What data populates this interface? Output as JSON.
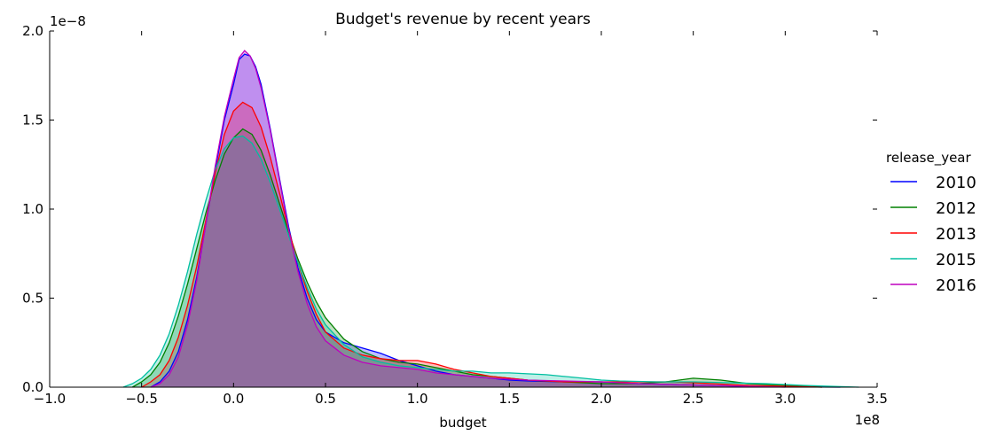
{
  "chart_data": {
    "type": "area",
    "title": "Budget's revenue by recent years",
    "xlabel": "budget",
    "ylabel": "",
    "x_offset_label": "1e8",
    "y_offset_label": "1e−8",
    "xlim": [
      -1.0,
      3.5
    ],
    "ylim": [
      0.0,
      2.0
    ],
    "xticks": [
      -1.0,
      -0.5,
      0.0,
      0.5,
      1.0,
      1.5,
      2.0,
      2.5,
      3.0,
      3.5
    ],
    "xtick_labels": [
      "−1.0",
      "−0.5",
      "0.0",
      "0.5",
      "1.0",
      "1.5",
      "2.0",
      "2.5",
      "3.0",
      "3.5"
    ],
    "yticks": [
      0.0,
      0.5,
      1.0,
      1.5,
      2.0
    ],
    "ytick_labels": [
      "0.0",
      "0.5",
      "1.0",
      "1.5",
      "2.0"
    ],
    "grid": false,
    "legend_title": "release_year",
    "legend_position": "right",
    "series": [
      {
        "name": "2010",
        "color": "#0000ff",
        "points": [
          [
            -0.45,
            0.0
          ],
          [
            -0.4,
            0.03
          ],
          [
            -0.35,
            0.09
          ],
          [
            -0.3,
            0.2
          ],
          [
            -0.25,
            0.38
          ],
          [
            -0.2,
            0.62
          ],
          [
            -0.15,
            0.92
          ],
          [
            -0.1,
            1.22
          ],
          [
            -0.05,
            1.5
          ],
          [
            0.0,
            1.7
          ],
          [
            0.03,
            1.84
          ],
          [
            0.06,
            1.87
          ],
          [
            0.09,
            1.86
          ],
          [
            0.12,
            1.8
          ],
          [
            0.15,
            1.7
          ],
          [
            0.2,
            1.45
          ],
          [
            0.25,
            1.17
          ],
          [
            0.3,
            0.9
          ],
          [
            0.35,
            0.67
          ],
          [
            0.4,
            0.5
          ],
          [
            0.45,
            0.38
          ],
          [
            0.5,
            0.31
          ],
          [
            0.6,
            0.25
          ],
          [
            0.7,
            0.22
          ],
          [
            0.8,
            0.19
          ],
          [
            0.9,
            0.15
          ],
          [
            1.0,
            0.12
          ],
          [
            1.1,
            0.09
          ],
          [
            1.2,
            0.07
          ],
          [
            1.3,
            0.06
          ],
          [
            1.4,
            0.05
          ],
          [
            1.5,
            0.04
          ],
          [
            1.6,
            0.035
          ],
          [
            1.8,
            0.03
          ],
          [
            2.0,
            0.03
          ],
          [
            2.2,
            0.02
          ],
          [
            2.4,
            0.015
          ],
          [
            2.6,
            0.01
          ],
          [
            2.8,
            0.005
          ],
          [
            3.0,
            0.002
          ],
          [
            3.3,
            0.0
          ]
        ]
      },
      {
        "name": "2012",
        "color": "#008000",
        "points": [
          [
            -0.55,
            0.0
          ],
          [
            -0.5,
            0.03
          ],
          [
            -0.45,
            0.07
          ],
          [
            -0.4,
            0.14
          ],
          [
            -0.35,
            0.25
          ],
          [
            -0.3,
            0.4
          ],
          [
            -0.25,
            0.58
          ],
          [
            -0.2,
            0.78
          ],
          [
            -0.15,
            0.98
          ],
          [
            -0.1,
            1.16
          ],
          [
            -0.05,
            1.31
          ],
          [
            0.0,
            1.4
          ],
          [
            0.05,
            1.45
          ],
          [
            0.1,
            1.42
          ],
          [
            0.15,
            1.33
          ],
          [
            0.2,
            1.19
          ],
          [
            0.25,
            1.03
          ],
          [
            0.3,
            0.87
          ],
          [
            0.35,
            0.72
          ],
          [
            0.4,
            0.59
          ],
          [
            0.45,
            0.48
          ],
          [
            0.5,
            0.39
          ],
          [
            0.6,
            0.27
          ],
          [
            0.7,
            0.2
          ],
          [
            0.8,
            0.16
          ],
          [
            0.9,
            0.14
          ],
          [
            1.0,
            0.13
          ],
          [
            1.1,
            0.11
          ],
          [
            1.2,
            0.09
          ],
          [
            1.3,
            0.07
          ],
          [
            1.4,
            0.06
          ],
          [
            1.5,
            0.05
          ],
          [
            1.6,
            0.04
          ],
          [
            1.8,
            0.03
          ],
          [
            2.0,
            0.02
          ],
          [
            2.2,
            0.02
          ],
          [
            2.35,
            0.03
          ],
          [
            2.5,
            0.05
          ],
          [
            2.65,
            0.04
          ],
          [
            2.8,
            0.02
          ],
          [
            3.0,
            0.01
          ],
          [
            3.2,
            0.0
          ]
        ]
      },
      {
        "name": "2013",
        "color": "#ff0000",
        "points": [
          [
            -0.5,
            0.0
          ],
          [
            -0.45,
            0.03
          ],
          [
            -0.4,
            0.07
          ],
          [
            -0.35,
            0.15
          ],
          [
            -0.3,
            0.28
          ],
          [
            -0.25,
            0.46
          ],
          [
            -0.2,
            0.68
          ],
          [
            -0.15,
            0.94
          ],
          [
            -0.1,
            1.2
          ],
          [
            -0.05,
            1.42
          ],
          [
            0.0,
            1.55
          ],
          [
            0.05,
            1.6
          ],
          [
            0.1,
            1.57
          ],
          [
            0.15,
            1.46
          ],
          [
            0.2,
            1.29
          ],
          [
            0.25,
            1.09
          ],
          [
            0.3,
            0.88
          ],
          [
            0.35,
            0.7
          ],
          [
            0.4,
            0.54
          ],
          [
            0.45,
            0.41
          ],
          [
            0.5,
            0.31
          ],
          [
            0.6,
            0.22
          ],
          [
            0.7,
            0.18
          ],
          [
            0.8,
            0.16
          ],
          [
            0.9,
            0.15
          ],
          [
            1.0,
            0.15
          ],
          [
            1.1,
            0.13
          ],
          [
            1.2,
            0.1
          ],
          [
            1.3,
            0.08
          ],
          [
            1.4,
            0.06
          ],
          [
            1.5,
            0.05
          ],
          [
            1.6,
            0.04
          ],
          [
            1.8,
            0.03
          ],
          [
            2.0,
            0.03
          ],
          [
            2.2,
            0.03
          ],
          [
            2.4,
            0.03
          ],
          [
            2.6,
            0.02
          ],
          [
            2.8,
            0.01
          ],
          [
            3.0,
            0.005
          ],
          [
            3.2,
            0.0
          ]
        ]
      },
      {
        "name": "2015",
        "color": "#00bfa0",
        "points": [
          [
            -0.6,
            0.0
          ],
          [
            -0.55,
            0.02
          ],
          [
            -0.5,
            0.05
          ],
          [
            -0.45,
            0.1
          ],
          [
            -0.4,
            0.18
          ],
          [
            -0.35,
            0.3
          ],
          [
            -0.3,
            0.46
          ],
          [
            -0.25,
            0.65
          ],
          [
            -0.2,
            0.86
          ],
          [
            -0.15,
            1.05
          ],
          [
            -0.1,
            1.22
          ],
          [
            -0.05,
            1.34
          ],
          [
            0.0,
            1.4
          ],
          [
            0.05,
            1.41
          ],
          [
            0.1,
            1.37
          ],
          [
            0.15,
            1.28
          ],
          [
            0.2,
            1.15
          ],
          [
            0.25,
            1.0
          ],
          [
            0.3,
            0.85
          ],
          [
            0.35,
            0.7
          ],
          [
            0.4,
            0.56
          ],
          [
            0.45,
            0.44
          ],
          [
            0.5,
            0.35
          ],
          [
            0.6,
            0.24
          ],
          [
            0.7,
            0.17
          ],
          [
            0.8,
            0.14
          ],
          [
            0.9,
            0.12
          ],
          [
            1.0,
            0.11
          ],
          [
            1.1,
            0.1
          ],
          [
            1.2,
            0.09
          ],
          [
            1.3,
            0.09
          ],
          [
            1.4,
            0.08
          ],
          [
            1.5,
            0.08
          ],
          [
            1.6,
            0.075
          ],
          [
            1.7,
            0.07
          ],
          [
            1.8,
            0.06
          ],
          [
            1.9,
            0.05
          ],
          [
            2.0,
            0.04
          ],
          [
            2.1,
            0.035
          ],
          [
            2.3,
            0.03
          ],
          [
            2.5,
            0.03
          ],
          [
            2.7,
            0.025
          ],
          [
            2.9,
            0.02
          ],
          [
            3.1,
            0.01
          ],
          [
            3.4,
            0.0
          ]
        ]
      },
      {
        "name": "2016",
        "color": "#bf00bf",
        "points": [
          [
            -0.45,
            0.0
          ],
          [
            -0.4,
            0.02
          ],
          [
            -0.35,
            0.07
          ],
          [
            -0.3,
            0.17
          ],
          [
            -0.25,
            0.35
          ],
          [
            -0.2,
            0.6
          ],
          [
            -0.15,
            0.92
          ],
          [
            -0.1,
            1.24
          ],
          [
            -0.05,
            1.52
          ],
          [
            0.0,
            1.73
          ],
          [
            0.03,
            1.85
          ],
          [
            0.06,
            1.89
          ],
          [
            0.09,
            1.86
          ],
          [
            0.12,
            1.79
          ],
          [
            0.15,
            1.68
          ],
          [
            0.2,
            1.44
          ],
          [
            0.25,
            1.16
          ],
          [
            0.3,
            0.88
          ],
          [
            0.35,
            0.65
          ],
          [
            0.4,
            0.47
          ],
          [
            0.45,
            0.34
          ],
          [
            0.5,
            0.26
          ],
          [
            0.6,
            0.18
          ],
          [
            0.7,
            0.14
          ],
          [
            0.8,
            0.12
          ],
          [
            0.9,
            0.11
          ],
          [
            1.0,
            0.1
          ],
          [
            1.1,
            0.08
          ],
          [
            1.2,
            0.07
          ],
          [
            1.3,
            0.06
          ],
          [
            1.4,
            0.05
          ],
          [
            1.5,
            0.045
          ],
          [
            1.6,
            0.04
          ],
          [
            1.8,
            0.035
          ],
          [
            2.0,
            0.03
          ],
          [
            2.2,
            0.02
          ],
          [
            2.4,
            0.015
          ],
          [
            2.6,
            0.01
          ],
          [
            2.8,
            0.005
          ],
          [
            3.0,
            0.0
          ]
        ]
      }
    ]
  }
}
